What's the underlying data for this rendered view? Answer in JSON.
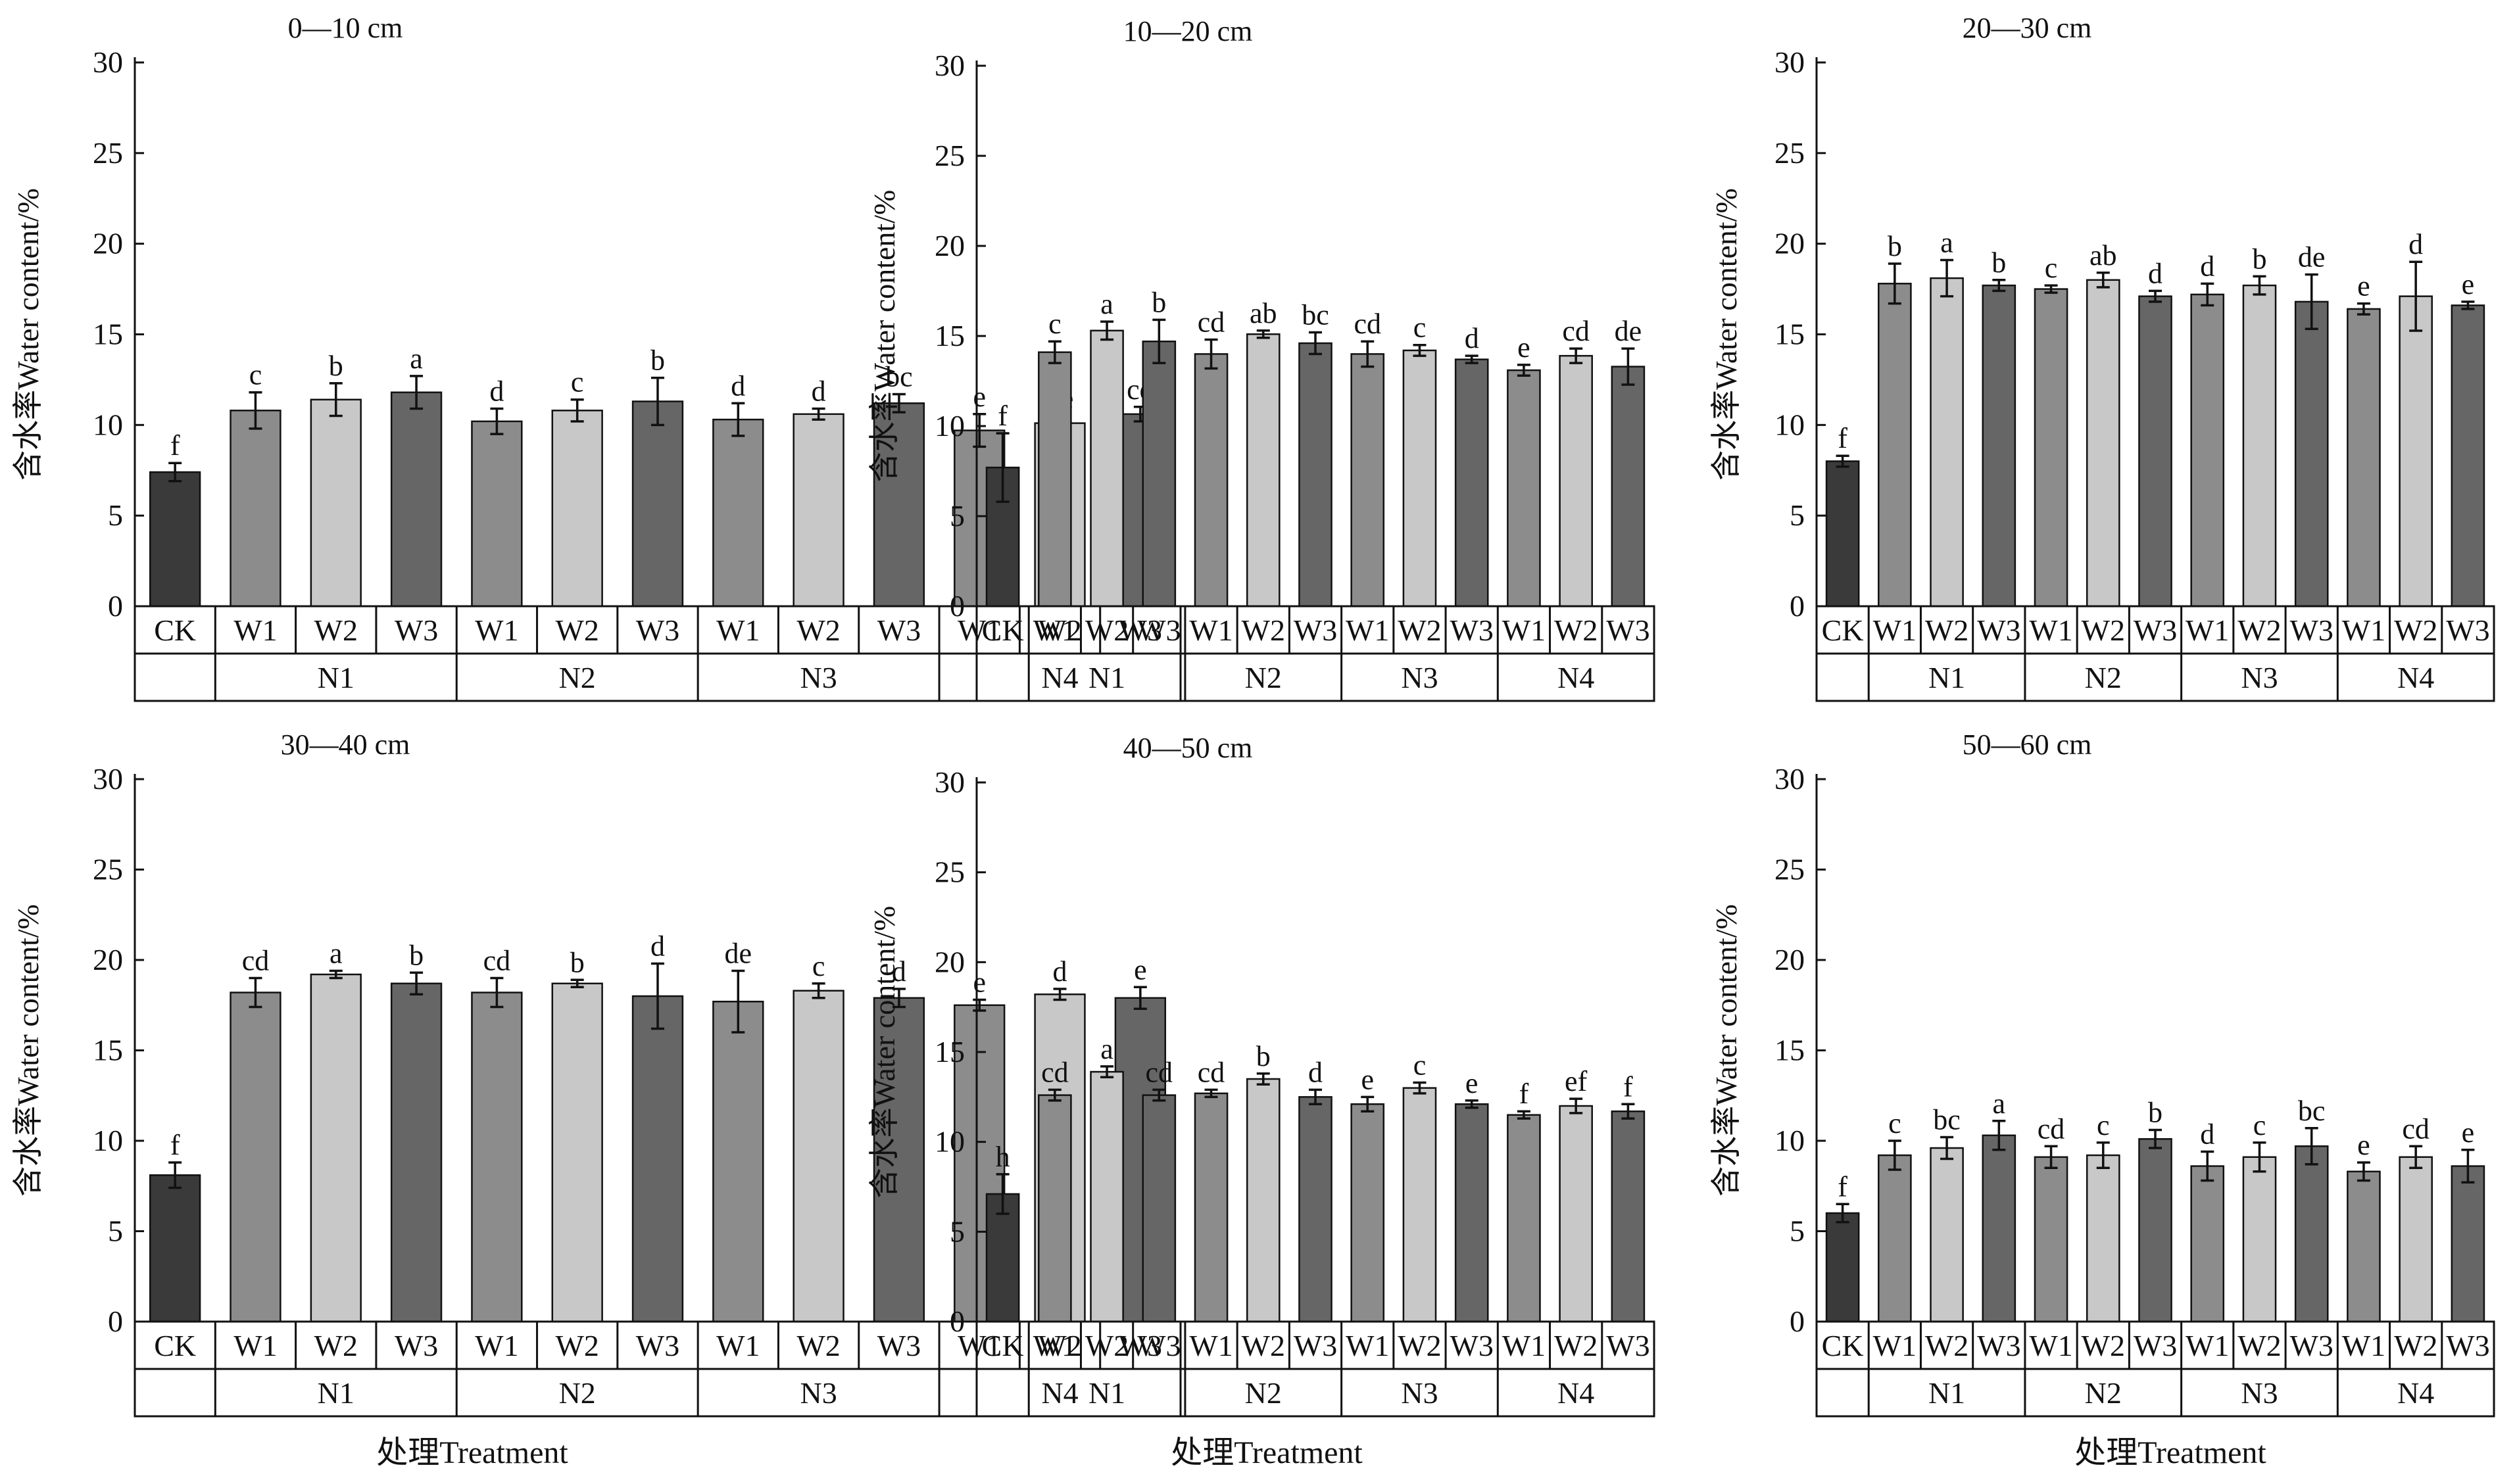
{
  "colors": {
    "CK": "#3a3a3a",
    "W1": "#8c8c8c",
    "W2": "#c8c8c8",
    "W3": "#666666"
  },
  "y_axis_label": "含水率Water content/%",
  "x_axis_label": "处理Treatment",
  "chart_data": [
    {
      "type": "bar",
      "title": "0—10 cm",
      "ylim": [
        0,
        30
      ],
      "yticks": [
        "0",
        "5",
        "10",
        "15",
        "20",
        "25",
        "30"
      ],
      "categories": [
        "CK",
        "W1",
        "W2",
        "W3",
        "W1",
        "W2",
        "W3",
        "W1",
        "W2",
        "W3",
        "W1",
        "W2",
        "W3"
      ],
      "groups": [
        "N1",
        "N2",
        "N3",
        "N4"
      ],
      "values": [
        7.4,
        10.8,
        11.4,
        11.8,
        10.2,
        10.8,
        11.3,
        10.3,
        10.6,
        11.2,
        9.7,
        10.1,
        10.6
      ],
      "errors": [
        0.5,
        1.0,
        0.9,
        0.9,
        0.7,
        0.6,
        1.3,
        0.9,
        0.3,
        0.5,
        0.9,
        0.4,
        0.4
      ],
      "letters": [
        "f",
        "c",
        "b",
        "a",
        "d",
        "c",
        "b",
        "d",
        "d",
        "bc",
        "e",
        "de",
        "cd"
      ]
    },
    {
      "type": "bar",
      "title": "10—20 cm",
      "ylim": [
        0,
        30
      ],
      "yticks": [
        "0",
        "5",
        "10",
        "15",
        "20",
        "25",
        "30"
      ],
      "categories": [
        "CK",
        "W1",
        "W2",
        "W3",
        "W1",
        "W2",
        "W3",
        "W1",
        "W2",
        "W3",
        "W1",
        "W2",
        "W3"
      ],
      "groups": [
        "N1",
        "N2",
        "N3",
        "N4"
      ],
      "values": [
        7.7,
        14.1,
        15.3,
        14.7,
        14.0,
        15.1,
        14.6,
        14.0,
        14.2,
        13.7,
        13.1,
        13.9,
        13.3
      ],
      "errors": [
        1.9,
        0.6,
        0.5,
        1.2,
        0.8,
        0.2,
        0.6,
        0.7,
        0.3,
        0.2,
        0.3,
        0.4,
        1.0
      ],
      "letters": [
        "f",
        "c",
        "a",
        "b",
        "cd",
        "ab",
        "bc",
        "cd",
        "c",
        "d",
        "e",
        "cd",
        "de"
      ]
    },
    {
      "type": "bar",
      "title": "20—30 cm",
      "ylim": [
        0,
        30
      ],
      "yticks": [
        "0",
        "5",
        "10",
        "15",
        "20",
        "25",
        "30"
      ],
      "categories": [
        "CK",
        "W1",
        "W2",
        "W3",
        "W1",
        "W2",
        "W3",
        "W1",
        "W2",
        "W3",
        "W1",
        "W2",
        "W3"
      ],
      "groups": [
        "N1",
        "N2",
        "N3",
        "N4"
      ],
      "values": [
        8.0,
        17.8,
        18.1,
        17.7,
        17.5,
        18.0,
        17.1,
        17.2,
        17.7,
        16.8,
        16.4,
        17.1,
        16.6
      ],
      "errors": [
        0.3,
        1.1,
        1.0,
        0.3,
        0.2,
        0.4,
        0.3,
        0.6,
        0.5,
        1.5,
        0.3,
        1.9,
        0.2
      ],
      "letters": [
        "f",
        "b",
        "a",
        "b",
        "c",
        "ab",
        "d",
        "d",
        "b",
        "de",
        "e",
        "d",
        "e"
      ]
    },
    {
      "type": "bar",
      "title": "30—40 cm",
      "ylim": [
        0,
        30
      ],
      "yticks": [
        "0",
        "5",
        "10",
        "15",
        "20",
        "25",
        "30"
      ],
      "categories": [
        "CK",
        "W1",
        "W2",
        "W3",
        "W1",
        "W2",
        "W3",
        "W1",
        "W2",
        "W3",
        "W1",
        "W2",
        "W3"
      ],
      "groups": [
        "N1",
        "N2",
        "N3",
        "N4"
      ],
      "values": [
        8.1,
        18.2,
        19.2,
        18.7,
        18.2,
        18.7,
        18.0,
        17.7,
        18.3,
        17.9,
        17.5,
        18.1,
        17.9
      ],
      "errors": [
        0.7,
        0.8,
        0.2,
        0.6,
        0.8,
        0.2,
        1.8,
        1.7,
        0.4,
        0.5,
        0.3,
        0.3,
        0.6
      ],
      "letters": [
        "f",
        "cd",
        "a",
        "b",
        "cd",
        "b",
        "d",
        "de",
        "c",
        "d",
        "e",
        "d",
        "e"
      ]
    },
    {
      "type": "bar",
      "title": "40—50 cm",
      "ylim": [
        0,
        30
      ],
      "yticks": [
        "0",
        "5",
        "10",
        "15",
        "20",
        "25",
        "30"
      ],
      "categories": [
        "CK",
        "W1",
        "W2",
        "W3",
        "W1",
        "W2",
        "W3",
        "W1",
        "W2",
        "W3",
        "W1",
        "W2",
        "W3"
      ],
      "groups": [
        "N1",
        "N2",
        "N3",
        "N4"
      ],
      "values": [
        7.1,
        12.6,
        13.9,
        12.6,
        12.7,
        13.5,
        12.5,
        12.1,
        13.0,
        12.1,
        11.5,
        12.0,
        11.7
      ],
      "errors": [
        1.1,
        0.3,
        0.3,
        0.3,
        0.2,
        0.3,
        0.4,
        0.4,
        0.3,
        0.2,
        0.2,
        0.4,
        0.4
      ],
      "letters": [
        "h",
        "cd",
        "a",
        "cd",
        "cd",
        "b",
        "d",
        "e",
        "c",
        "e",
        "f",
        "ef",
        "f"
      ]
    },
    {
      "type": "bar",
      "title": "50—60 cm",
      "ylim": [
        0,
        30
      ],
      "yticks": [
        "0",
        "5",
        "10",
        "15",
        "20",
        "25",
        "30"
      ],
      "categories": [
        "CK",
        "W1",
        "W2",
        "W3",
        "W1",
        "W2",
        "W3",
        "W1",
        "W2",
        "W3",
        "W1",
        "W2",
        "W3"
      ],
      "groups": [
        "N1",
        "N2",
        "N3",
        "N4"
      ],
      "values": [
        6.0,
        9.2,
        9.6,
        10.3,
        9.1,
        9.2,
        10.1,
        8.6,
        9.1,
        9.7,
        8.3,
        9.1,
        8.6
      ],
      "errors": [
        0.5,
        0.8,
        0.6,
        0.8,
        0.6,
        0.7,
        0.5,
        0.8,
        0.8,
        1.0,
        0.5,
        0.6,
        0.9
      ],
      "letters": [
        "f",
        "c",
        "bc",
        "a",
        "cd",
        "c",
        "b",
        "d",
        "c",
        "bc",
        "e",
        "cd",
        "e"
      ]
    }
  ]
}
